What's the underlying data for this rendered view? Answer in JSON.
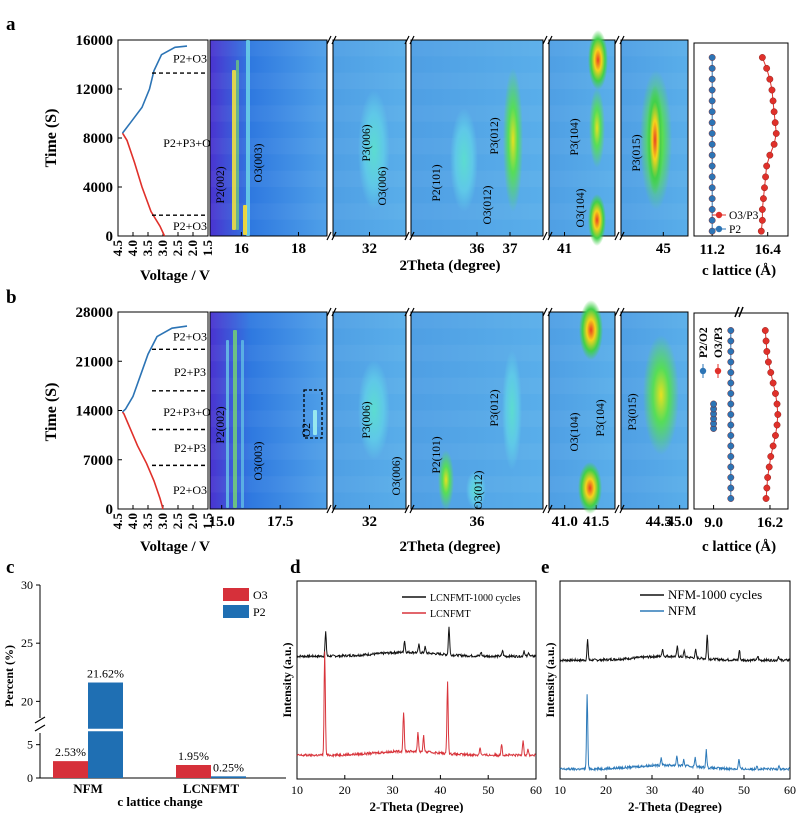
{
  "panels": {
    "a": "a",
    "b": "b",
    "c": "c",
    "d": "d",
    "e": "e"
  },
  "colors": {
    "red": "#e0302a",
    "blue": "#2c74b5",
    "bar_red": "#d6303a",
    "bar_blue": "#1f6fb3",
    "xrd_black": "#111111",
    "xrd_red": "#d8343b",
    "xrd_blue": "#2d7ab9",
    "map_cyan": "#57d3ea",
    "map_violet": "#5a2bd8"
  },
  "chart_data": [
    {
      "type": "line",
      "panel": "a",
      "part": "voltage profile",
      "ylabel": "Time (S)",
      "xlabel": "Voltage / V",
      "xlim": [
        4.5,
        1.5
      ],
      "xticks": [
        "4.5",
        "4.0",
        "3.5",
        "3.0",
        "2.5",
        "2.0",
        "1.5"
      ],
      "ylim": [
        0,
        16000
      ],
      "yticks": [
        "0",
        "4000",
        "8000",
        "12000",
        "16000"
      ],
      "series": [
        {
          "color": "red",
          "points": [
            [
              2.95,
              0
            ],
            [
              3.1,
              800
            ],
            [
              3.4,
              2000
            ],
            [
              3.7,
              4000
            ],
            [
              3.95,
              6000
            ],
            [
              4.2,
              7800
            ],
            [
              4.35,
              8400
            ]
          ]
        },
        {
          "color": "blue",
          "points": [
            [
              4.35,
              8400
            ],
            [
              4.1,
              9200
            ],
            [
              3.7,
              10500
            ],
            [
              3.45,
              12000
            ],
            [
              3.3,
              13500
            ],
            [
              3.05,
              14800
            ],
            [
              2.6,
              15400
            ],
            [
              2.2,
              15500
            ]
          ]
        }
      ],
      "phase_regions": [
        {
          "label": "P2+O3",
          "time": 14500
        },
        {
          "label": "P2+P3+O3",
          "time": 7600
        },
        {
          "label": "P2+O3",
          "time": 800
        }
      ],
      "boundaries": [
        13300,
        1700
      ]
    },
    {
      "type": "heatmap",
      "panel": "a",
      "part": "in-situ XRD contour",
      "xlabel": "2Theta (degree)",
      "segments": [
        {
          "xlim": [
            14.9,
            19.0
          ],
          "xticks": [
            "16",
            "18"
          ]
        },
        {
          "xlim": [
            30.5,
            33.5
          ],
          "xticks": [
            "32"
          ]
        },
        {
          "xlim": [
            34.0,
            38.0
          ],
          "xticks": [
            "36",
            "37"
          ]
        },
        {
          "xlim": [
            40.6,
            42.3
          ],
          "xticks": [
            "41"
          ]
        },
        {
          "xlim": [
            43.8,
            45.7
          ],
          "xticks": [
            "45"
          ]
        }
      ],
      "peak_labels": [
        "P2(002)",
        "O3(003)",
        "P3(006)",
        "O3(006)",
        "P2(101)",
        "O3(012)",
        "P3(012)",
        "O3(104)",
        "P3(104)",
        "P3(015)"
      ]
    },
    {
      "type": "scatter",
      "panel": "a",
      "part": "c lattice",
      "xlabel": "c lattice (Å)",
      "xticks": [
        "11.2",
        "16.4"
      ],
      "xlim": [
        9.5,
        18.3
      ],
      "ylim": [
        0,
        16000
      ],
      "legend": [
        "O3/P3",
        "P2"
      ],
      "series": [
        {
          "name": "O3/P3",
          "color": "red",
          "points": [
            [
              15.8,
              400
            ],
            [
              15.9,
              1300
            ],
            [
              15.9,
              2200
            ],
            [
              16.0,
              3100
            ],
            [
              16.1,
              4000
            ],
            [
              16.2,
              4900
            ],
            [
              16.3,
              5800
            ],
            [
              16.6,
              6700
            ],
            [
              17.0,
              7600
            ],
            [
              17.2,
              8500
            ],
            [
              17.1,
              9400
            ],
            [
              17.0,
              10300
            ],
            [
              16.9,
              11200
            ],
            [
              16.8,
              12100
            ],
            [
              16.6,
              13000
            ],
            [
              16.3,
              13900
            ],
            [
              15.9,
              14800
            ]
          ]
        },
        {
          "name": "P2",
          "color": "blue",
          "points": [
            [
              11.2,
              400
            ],
            [
              11.2,
              1300
            ],
            [
              11.2,
              2200
            ],
            [
              11.2,
              3100
            ],
            [
              11.2,
              4000
            ],
            [
              11.2,
              4900
            ],
            [
              11.2,
              5800
            ],
            [
              11.2,
              6700
            ],
            [
              11.2,
              7600
            ],
            [
              11.2,
              8500
            ],
            [
              11.2,
              9400
            ],
            [
              11.2,
              10300
            ],
            [
              11.2,
              11200
            ],
            [
              11.2,
              12100
            ],
            [
              11.2,
              13000
            ],
            [
              11.2,
              13900
            ],
            [
              11.2,
              14800
            ]
          ]
        }
      ]
    },
    {
      "type": "line",
      "panel": "b",
      "part": "voltage profile",
      "ylabel": "Time (S)",
      "xlabel": "Voltage / V",
      "xlim": [
        4.5,
        1.5
      ],
      "xticks": [
        "4.5",
        "4.0",
        "3.5",
        "3.0",
        "2.5",
        "2.0",
        "1.5"
      ],
      "ylim": [
        0,
        28000
      ],
      "yticks": [
        "0",
        "7000",
        "14000",
        "21000",
        "28000"
      ],
      "series": [
        {
          "color": "red",
          "points": [
            [
              3.0,
              0
            ],
            [
              3.1,
              1500
            ],
            [
              3.3,
              4000
            ],
            [
              3.55,
              6500
            ],
            [
              3.85,
              9000
            ],
            [
              4.1,
              11500
            ],
            [
              4.3,
              13500
            ],
            [
              4.35,
              13800
            ]
          ]
        },
        {
          "color": "blue",
          "points": [
            [
              4.35,
              13800
            ],
            [
              4.25,
              14200
            ],
            [
              4.0,
              16000
            ],
            [
              3.75,
              19000
            ],
            [
              3.5,
              22000
            ],
            [
              3.2,
              24500
            ],
            [
              2.7,
              25700
            ],
            [
              2.2,
              26000
            ]
          ]
        }
      ],
      "phase_regions": [
        {
          "label": "P2+O3",
          "time": 24500
        },
        {
          "label": "P2+P3",
          "time": 19500
        },
        {
          "label": "P2+P3+O2",
          "time": 13800
        },
        {
          "label": "P2+P3",
          "time": 8700
        },
        {
          "label": "P2+O3",
          "time": 2700
        }
      ],
      "boundaries": [
        22700,
        16800,
        11300,
        6200
      ]
    },
    {
      "type": "heatmap",
      "panel": "b",
      "part": "in-situ XRD contour",
      "xlabel": "2Theta (degree)",
      "segments": [
        {
          "xlim": [
            14.5,
            19.5
          ],
          "xticks": [
            "15.0",
            "17.5"
          ]
        },
        {
          "xlim": [
            30.5,
            33.5
          ],
          "xticks": [
            "32"
          ]
        },
        {
          "xlim": [
            34.0,
            38.0
          ],
          "xticks": [
            "36"
          ]
        },
        {
          "xlim": [
            40.75,
            41.8
          ],
          "xticks": [
            "41.0",
            "41.5"
          ]
        },
        {
          "xlim": [
            43.6,
            45.2
          ],
          "xticks": [
            "44.5",
            "45.0"
          ]
        }
      ],
      "peak_labels": [
        "P2(002)",
        "O3(003)",
        "O2",
        "P3(006)",
        "O3(006)",
        "P2(101)",
        "O3(012)",
        "P3(012)",
        "O3(104)",
        "P3(104)",
        "P3(015)"
      ]
    },
    {
      "type": "scatter",
      "panel": "b",
      "part": "c lattice",
      "xlabel": "c lattice (Å)",
      "xticks": [
        "9.0",
        "16.2"
      ],
      "xlim": [
        6.5,
        18.5
      ],
      "ylim": [
        0,
        28000
      ],
      "legend": [
        "P2/O2",
        "O3/P3"
      ],
      "series": [
        {
          "name": "O2",
          "color": "blue",
          "points": [
            [
              9.0,
              11500
            ],
            [
              9.0,
              12200
            ],
            [
              9.0,
              12900
            ],
            [
              9.0,
              13600
            ],
            [
              9.0,
              14300
            ],
            [
              9.0,
              15000
            ]
          ]
        },
        {
          "name": "P2",
          "color": "blue",
          "points": [
            [
              11.2,
              1500
            ],
            [
              11.2,
              3000
            ],
            [
              11.2,
              4500
            ],
            [
              11.2,
              6000
            ],
            [
              11.2,
              7500
            ],
            [
              11.2,
              9000
            ],
            [
              11.2,
              10500
            ],
            [
              11.2,
              12000
            ],
            [
              11.2,
              13500
            ],
            [
              11.2,
              15000
            ],
            [
              11.2,
              16500
            ],
            [
              11.2,
              18000
            ],
            [
              11.2,
              19500
            ],
            [
              11.2,
              21000
            ],
            [
              11.2,
              22500
            ],
            [
              11.2,
              24000
            ],
            [
              11.2,
              25500
            ]
          ]
        },
        {
          "name": "O3/P3",
          "color": "red",
          "points": [
            [
              15.7,
              1500
            ],
            [
              15.8,
              3000
            ],
            [
              15.9,
              4500
            ],
            [
              16.1,
              6000
            ],
            [
              16.3,
              7500
            ],
            [
              16.6,
              9000
            ],
            [
              16.9,
              10500
            ],
            [
              17.1,
              12000
            ],
            [
              17.2,
              13500
            ],
            [
              17.1,
              15000
            ],
            [
              16.9,
              16500
            ],
            [
              16.6,
              18000
            ],
            [
              16.3,
              19500
            ],
            [
              16.0,
              21000
            ],
            [
              15.8,
              22500
            ],
            [
              15.7,
              24000
            ],
            [
              15.6,
              25500
            ]
          ]
        }
      ]
    },
    {
      "type": "bar",
      "panel": "c",
      "xlabel": "c lattice change",
      "ylabel": "Percent (%)",
      "categories": [
        "NFM",
        "LCNFMT"
      ],
      "series": [
        {
          "name": "O3",
          "values": [
            2.53,
            1.95
          ]
        },
        {
          "name": "P2",
          "values": [
            21.62,
            0.25
          ]
        }
      ],
      "data_labels": [
        "2.53%",
        "21.62%",
        "1.95%",
        "0.25%"
      ],
      "yticks": [
        "0",
        "5",
        "20",
        "25",
        "30"
      ],
      "axis_break": [
        6,
        19
      ],
      "ylim": [
        0,
        30
      ],
      "legend": "top-right"
    },
    {
      "type": "line",
      "panel": "d",
      "xlabel": "2-Theta (Degree)",
      "ylabel": "Intensity (a.u.)",
      "xlim": [
        10,
        60
      ],
      "xticks": [
        "10",
        "20",
        "30",
        "40",
        "50",
        "60"
      ],
      "legend": "top-left",
      "series": [
        {
          "name": "LCNFMT-1000 cycles",
          "color": "xrd_black",
          "offset": 0.62,
          "peaks": [
            [
              16.0,
              0.12
            ],
            [
              32.5,
              0.06
            ],
            [
              35.5,
              0.04
            ],
            [
              36.8,
              0.03
            ],
            [
              41.8,
              0.14
            ],
            [
              48.5,
              0.02
            ],
            [
              53.0,
              0.03
            ],
            [
              57.5,
              0.03
            ],
            [
              58.5,
              0.02
            ]
          ]
        },
        {
          "name": "LCNFMT",
          "color": "xrd_red",
          "offset": 0.12,
          "peaks": [
            [
              15.8,
              0.52
            ],
            [
              32.3,
              0.2
            ],
            [
              35.3,
              0.1
            ],
            [
              36.5,
              0.08
            ],
            [
              41.5,
              0.37
            ],
            [
              48.3,
              0.04
            ],
            [
              52.8,
              0.06
            ],
            [
              57.3,
              0.08
            ],
            [
              58.3,
              0.03
            ]
          ]
        }
      ]
    },
    {
      "type": "line",
      "panel": "e",
      "xlabel": "2-Theta (Degree)",
      "ylabel": "Intensity (a.u.)",
      "xlim": [
        10,
        60
      ],
      "xticks": [
        "10",
        "20",
        "30",
        "40",
        "50",
        "60"
      ],
      "legend": "top-right",
      "series": [
        {
          "name": "NFM-1000 cycles",
          "color": "xrd_black",
          "offset": 0.6,
          "peaks": [
            [
              16.0,
              0.1
            ],
            [
              32.3,
              0.04
            ],
            [
              35.5,
              0.05
            ],
            [
              37.0,
              0.03
            ],
            [
              39.5,
              0.04
            ],
            [
              42.0,
              0.12
            ],
            [
              49.0,
              0.05
            ],
            [
              53.0,
              0.02
            ],
            [
              57.5,
              0.02
            ]
          ]
        },
        {
          "name": "NFM",
          "color": "xrd_blue",
          "offset": 0.05,
          "peaks": [
            [
              15.9,
              0.38
            ],
            [
              32.0,
              0.04
            ],
            [
              35.4,
              0.05
            ],
            [
              36.9,
              0.03
            ],
            [
              39.4,
              0.05
            ],
            [
              41.8,
              0.09
            ],
            [
              48.9,
              0.05
            ],
            [
              52.8,
              0.02
            ],
            [
              57.6,
              0.02
            ]
          ]
        }
      ]
    }
  ]
}
